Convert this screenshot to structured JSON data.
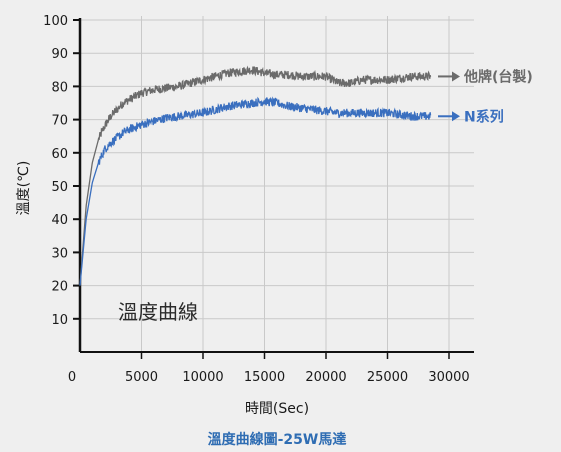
{
  "chart_data": {
    "type": "line",
    "title": "",
    "caption": "溫度曲線圖-25W馬達",
    "annotation": "溫度曲線",
    "xlabel": "時間(Sec)",
    "ylabel": "溫度(℃)",
    "xlim": [
      0,
      30000
    ],
    "ylim": [
      0,
      100
    ],
    "x_ticks": [
      "0",
      "5000",
      "10000",
      "15000",
      "20000",
      "25000",
      "30000"
    ],
    "y_ticks": [
      "10",
      "20",
      "30",
      "40",
      "50",
      "60",
      "70",
      "80",
      "90",
      "100"
    ],
    "grid": true,
    "series": [
      {
        "name": "他牌(台製)",
        "color": "#6b6b6b",
        "x": [
          0,
          500,
          1000,
          1500,
          2000,
          2500,
          3000,
          3500,
          4000,
          5000,
          6000,
          7000,
          8000,
          9000,
          10000,
          11000,
          12000,
          13000,
          14000,
          15000,
          16000,
          17000,
          18000,
          19000,
          20000,
          21000,
          22000,
          23000,
          24000,
          25000,
          26000,
          27000,
          28500
        ],
        "y": [
          20,
          44,
          57,
          64,
          68,
          71,
          73,
          75,
          76,
          78,
          79,
          79.5,
          80,
          81,
          82,
          83,
          84,
          84.5,
          85,
          84,
          83.5,
          83.5,
          83,
          83,
          83,
          81,
          81,
          82,
          82,
          82,
          82.5,
          83,
          83
        ]
      },
      {
        "name": "N系列",
        "color": "#3a6fbf",
        "x": [
          0,
          500,
          1000,
          1500,
          2000,
          2500,
          3000,
          3500,
          4000,
          5000,
          6000,
          7000,
          8000,
          9000,
          10000,
          11000,
          12000,
          13000,
          14000,
          15000,
          16000,
          17000,
          18000,
          19000,
          20000,
          21000,
          22000,
          23000,
          24000,
          25000,
          26000,
          27000,
          28500
        ],
        "y": [
          20,
          40,
          51,
          57,
          61,
          63,
          64.5,
          66,
          67,
          68.5,
          69.5,
          70.5,
          71,
          71.5,
          72,
          73,
          74,
          74.5,
          75,
          75.5,
          75,
          74,
          73.5,
          73,
          72.5,
          72,
          72,
          72,
          72,
          72,
          71.5,
          71,
          71
        ]
      }
    ]
  }
}
